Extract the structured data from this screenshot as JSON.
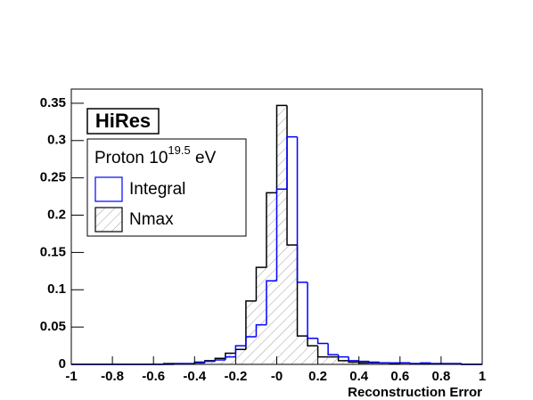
{
  "chart_data": {
    "type": "histogram",
    "annotation": "HiRes",
    "legend_title": [
      "Proton 10",
      "19.5",
      " eV"
    ],
    "xlabel": "Reconstruction Error",
    "bins": [
      -1,
      -0.95,
      -0.9,
      -0.85,
      -0.8,
      -0.75,
      -0.7,
      -0.65,
      -0.6,
      -0.55,
      -0.5,
      -0.45,
      -0.4,
      -0.35,
      -0.3,
      -0.25,
      -0.2,
      -0.15,
      -0.1,
      -0.05,
      0,
      0.05,
      0.1,
      0.15,
      0.2,
      0.25,
      0.3,
      0.35,
      0.4,
      0.45,
      0.5,
      0.55,
      0.6,
      0.65,
      0.7,
      0.75,
      0.8,
      0.85,
      0.9,
      0.95,
      1
    ],
    "series": [
      {
        "name": "Integral",
        "color": "#0000ff",
        "fill": "none",
        "values": [
          0,
          0,
          0,
          0,
          0,
          0,
          0,
          0,
          0,
          0,
          0.001,
          0.001,
          0.002,
          0.004,
          0.006,
          0.01,
          0.025,
          0.037,
          0.053,
          0.112,
          0.235,
          0.305,
          0.11,
          0.035,
          0.028,
          0.013,
          0.01,
          0.005,
          0.004,
          0.003,
          0.002,
          0.002,
          0.002,
          0.001,
          0.002,
          0.001,
          0.001,
          0.001,
          0,
          0
        ]
      },
      {
        "name": "Nmax",
        "color": "#000000",
        "fill": "hatch",
        "values": [
          0,
          0,
          0,
          0,
          0,
          0,
          0,
          0,
          0,
          0.001,
          0.001,
          0.001,
          0.003,
          0.005,
          0.008,
          0.015,
          0.02,
          0.085,
          0.13,
          0.23,
          0.347,
          0.16,
          0.038,
          0.025,
          0.01,
          0.01,
          0.005,
          0.003,
          0.002,
          0.002,
          0.002,
          0.001,
          0.002,
          0.001,
          0.001,
          0.001,
          0.001,
          0.001,
          0,
          0
        ]
      }
    ],
    "xlim": [
      -1,
      1
    ],
    "ylim": [
      0,
      0.369
    ],
    "xticks": [
      -1,
      -0.8,
      -0.6,
      -0.4,
      -0.2,
      {
        "value": 0,
        "label": "-0"
      },
      0.2,
      0.4,
      0.6,
      0.8,
      1
    ],
    "yticks": [
      0,
      0.05,
      0.1,
      0.15,
      0.2,
      0.25,
      0.3,
      0.35
    ]
  }
}
